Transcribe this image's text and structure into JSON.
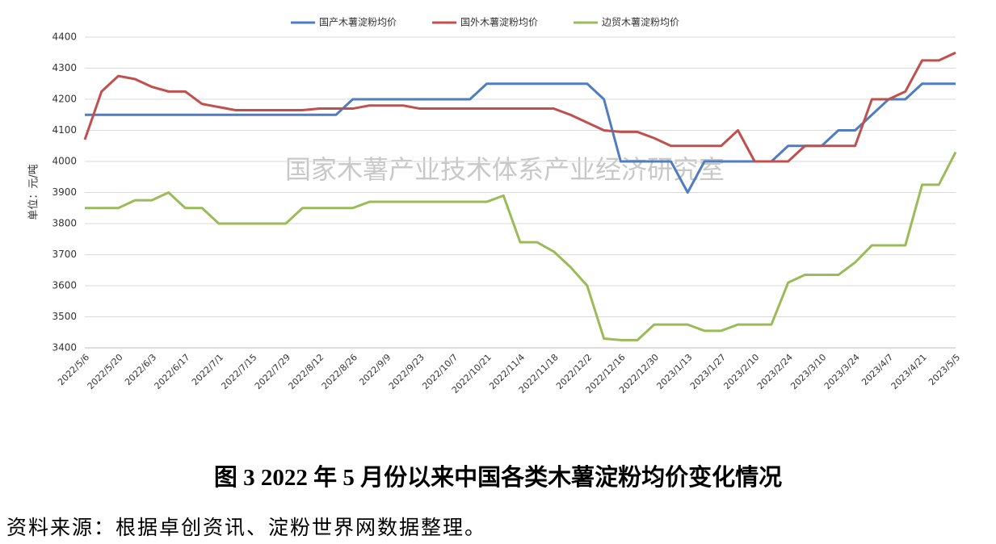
{
  "chart_data": {
    "type": "line",
    "watermark": "国家木薯产业技术体系产业经济研究室",
    "caption": "图 3   2022 年 5 月份以来中国各类木薯淀粉均价变化情况",
    "source": "资料来源：根据卓创资讯、淀粉世界网数据整理。",
    "y_label": "单位：元/吨",
    "categories": [
      "2022/5/6",
      null,
      "2022/5/20",
      null,
      "2022/6/3",
      null,
      "2022/6/17",
      null,
      "2022/7/1",
      null,
      "2022/7/15",
      null,
      "2022/7/29",
      null,
      "2022/8/12",
      null,
      "2022/8/26",
      null,
      "2022/9/9",
      null,
      "2022/9/23",
      null,
      "2022/10/7",
      null,
      "2022/10/21",
      null,
      "2022/11/4",
      null,
      "2022/11/18",
      null,
      "2022/12/2",
      null,
      "2022/12/16",
      null,
      "2022/12/30",
      null,
      "2023/1/13",
      null,
      "2023/1/27",
      null,
      "2023/2/10",
      null,
      "2023/2/24",
      null,
      "2023/3/10",
      null,
      "2023/3/24",
      null,
      "2023/4/7",
      null,
      "2023/4/21",
      null,
      "2023/5/5"
    ],
    "series": [
      {
        "name": "国产木薯淀粉均价",
        "color": "#4f7dbf",
        "values": [
          4150,
          4150,
          4150,
          4150,
          4150,
          4150,
          4150,
          4150,
          4150,
          4150,
          4150,
          4150,
          4150,
          4150,
          4150,
          4150,
          4200,
          4200,
          4200,
          4200,
          4200,
          4200,
          4200,
          4200,
          4250,
          4250,
          4250,
          4250,
          4250,
          4250,
          4250,
          4200,
          4000,
          4000,
          4000,
          4000,
          3900,
          4000,
          4000,
          4000,
          4000,
          4000,
          4050,
          4050,
          4050,
          4100,
          4100,
          4150,
          4200,
          4200,
          4250,
          4250,
          4250
        ]
      },
      {
        "name": "国外木薯淀粉均价",
        "color": "#c0504d",
        "values": [
          4070,
          4225,
          4275,
          4265,
          4240,
          4225,
          4225,
          4185,
          4175,
          4165,
          4165,
          4165,
          4165,
          4165,
          4170,
          4170,
          4170,
          4180,
          4180,
          4180,
          4170,
          4170,
          4170,
          4170,
          4170,
          4170,
          4170,
          4170,
          4170,
          4150,
          4125,
          4100,
          4095,
          4095,
          4075,
          4050,
          4050,
          4050,
          4050,
          4100,
          4000,
          4000,
          4000,
          4050,
          4050,
          4050,
          4050,
          4200,
          4200,
          4225,
          4325,
          4325,
          4350
        ]
      },
      {
        "name": "边贸木薯淀粉均价",
        "color": "#9bbb59",
        "values": [
          3850,
          3850,
          3850,
          3875,
          3875,
          3900,
          3850,
          3850,
          3800,
          3800,
          3800,
          3800,
          3800,
          3850,
          3850,
          3850,
          3850,
          3870,
          3870,
          3870,
          3870,
          3870,
          3870,
          3870,
          3870,
          3890,
          3740,
          3740,
          3710,
          3660,
          3600,
          3430,
          3425,
          3425,
          3475,
          3475,
          3475,
          3455,
          3455,
          3475,
          3475,
          3475,
          3610,
          3635,
          3635,
          3635,
          3675,
          3730,
          3730,
          3730,
          3925,
          3925,
          4030
        ]
      }
    ],
    "ylim": [
      3400,
      4400
    ],
    "yticks": [
      3400,
      3500,
      3600,
      3700,
      3800,
      3900,
      4000,
      4100,
      4200,
      4300,
      4400
    ],
    "grid": true
  }
}
